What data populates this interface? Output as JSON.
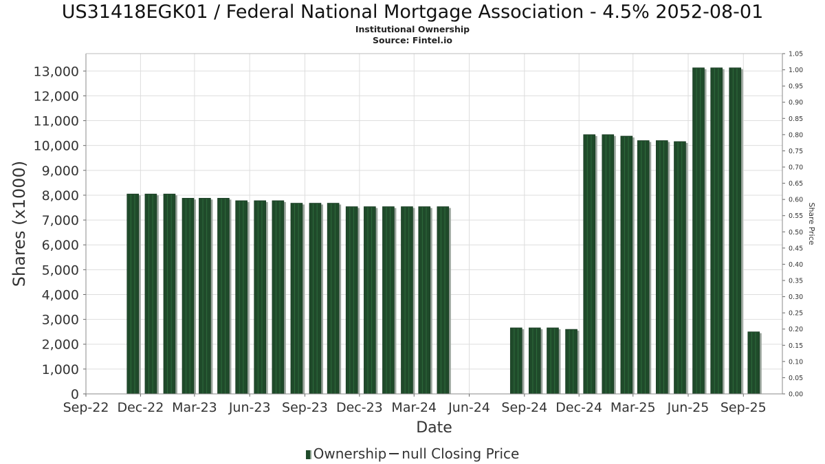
{
  "header": {
    "title": "US31418EGK01 / Federal National Mortgage Association - 4.5% 2052-08-01",
    "subtitle1": "Institutional Ownership",
    "subtitle2": "Source: Fintel.io"
  },
  "legend": {
    "ownership_label": "Ownership",
    "price_label": "null Closing Price"
  },
  "colors": {
    "bar": "#1f4a2a",
    "bar_stripe": "#2e6b3c",
    "bar_shadow": "#9aa59c",
    "grid": "#dddddd"
  },
  "chart_data": {
    "type": "bar",
    "title": "US31418EGK01 / Federal National Mortgage Association - 4.5% 2052-08-01",
    "xlabel": "Date",
    "ylabel": "Shares (x1000)",
    "y2label": "Share Price",
    "ylim": [
      0,
      13700
    ],
    "y2lim": [
      0,
      1.05
    ],
    "yticks": [
      0,
      1000,
      2000,
      3000,
      4000,
      5000,
      6000,
      7000,
      8000,
      9000,
      10000,
      11000,
      12000,
      13000
    ],
    "ytick_labels": [
      "0",
      "1,000",
      "2,000",
      "3,000",
      "4,000",
      "5,000",
      "6,000",
      "7,000",
      "8,000",
      "9,000",
      "10,000",
      "11,000",
      "12,000",
      "13,000"
    ],
    "y2ticks": [
      0.0,
      0.05,
      0.1,
      0.15,
      0.2,
      0.25,
      0.3,
      0.35,
      0.4,
      0.45,
      0.5,
      0.55,
      0.6,
      0.65,
      0.7,
      0.75,
      0.8,
      0.85,
      0.9,
      0.95,
      1.0,
      1.05
    ],
    "y2tick_labels": [
      "0.00",
      "0.05",
      "0.10",
      "0.15",
      "0.20",
      "0.25",
      "0.30",
      "0.35",
      "0.40",
      "0.45",
      "0.50",
      "0.55",
      "0.60",
      "0.65",
      "0.70",
      "0.75",
      "0.80",
      "0.85",
      "0.90",
      "0.95",
      "1.00",
      "1.05"
    ],
    "xlim": [
      "2022-09-01",
      "2025-11-05"
    ],
    "xticks": [
      "2022-09-01",
      "2022-12-01",
      "2023-03-01",
      "2023-06-01",
      "2023-09-01",
      "2023-12-01",
      "2024-03-01",
      "2024-06-01",
      "2024-09-01",
      "2024-12-01",
      "2025-03-01",
      "2025-06-01",
      "2025-09-01"
    ],
    "xtick_labels": [
      "Sep-22",
      "Dec-22",
      "Mar-23",
      "Jun-23",
      "Sep-23",
      "Dec-23",
      "Mar-24",
      "Jun-24",
      "Sep-24",
      "Dec-24",
      "Mar-25",
      "Jun-25",
      "Sep-25"
    ],
    "grid": true,
    "legend_position": "bottom-center",
    "series": [
      {
        "name": "Ownership",
        "x": [
          "2022-11-01",
          "2022-12-01",
          "2023-01-01",
          "2023-02-01",
          "2023-03-01",
          "2023-04-01",
          "2023-05-01",
          "2023-06-01",
          "2023-07-01",
          "2023-08-01",
          "2023-09-01",
          "2023-10-01",
          "2023-11-01",
          "2023-12-01",
          "2024-01-01",
          "2024-02-01",
          "2024-03-01",
          "2024-04-01",
          "2024-08-01",
          "2024-09-01",
          "2024-10-01",
          "2024-11-01",
          "2024-12-01",
          "2025-01-01",
          "2025-02-01",
          "2025-03-01",
          "2025-04-01",
          "2025-05-01",
          "2025-06-01",
          "2025-07-01",
          "2025-08-01",
          "2025-09-01"
        ],
        "values": [
          8050,
          8050,
          8050,
          7880,
          7880,
          7880,
          7780,
          7780,
          7780,
          7680,
          7680,
          7680,
          7540,
          7540,
          7540,
          7540,
          7540,
          7540,
          2660,
          2660,
          2660,
          2600,
          10440,
          10440,
          10380,
          10200,
          10200,
          10160,
          13130,
          13130,
          13130,
          2500
        ]
      }
    ]
  }
}
